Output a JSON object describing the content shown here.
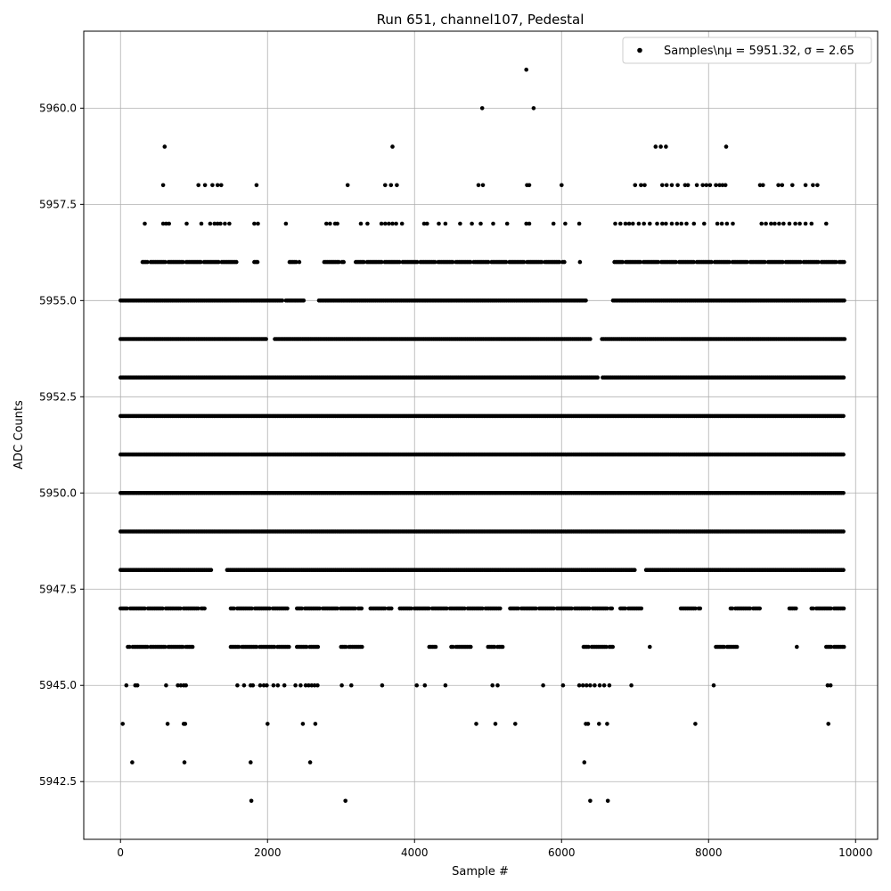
{
  "chart_data": {
    "type": "scatter",
    "title": "Run 651, channel107, Pedestal",
    "xlabel": "Sample #",
    "ylabel": "ADC Counts",
    "xlim": [
      -500,
      10300
    ],
    "ylim": [
      5941.0,
      5962.0
    ],
    "x_ticks": [
      0,
      2000,
      4000,
      6000,
      8000,
      10000
    ],
    "x_tick_labels": [
      "0",
      "2000",
      "4000",
      "6000",
      "8000",
      "10000"
    ],
    "y_ticks": [
      5942.5,
      5945.0,
      5947.5,
      5950.0,
      5952.5,
      5955.0,
      5957.5,
      5960.0
    ],
    "y_tick_labels": [
      "5942.5",
      "5945.0",
      "5947.5",
      "5950.0",
      "5952.5",
      "5955.0",
      "5957.5",
      "5960.0"
    ],
    "grid": true,
    "legend_position": "top-right",
    "marker_color": "#000000",
    "series": [
      {
        "name": "Samples\\nμ = 5951.32, σ = 2.65",
        "n_samples": 9850,
        "bands": [
          {
            "y": 5961,
            "x": [
              5520
            ]
          },
          {
            "y": 5960,
            "x": [
              4920,
              5620
            ]
          },
          {
            "y": 5959,
            "x": [
              600,
              3700,
              7280,
              7350,
              7420,
              8240
            ]
          },
          {
            "y": 5958,
            "x": [
              580,
              1060,
              1150,
              1250,
              1320,
              1370,
              1850,
              3090,
              3600,
              3680,
              3760,
              4870,
              4930,
              5530,
              5560,
              6000,
              7000,
              7080,
              7130,
              7370,
              7430,
              7500,
              7580,
              7680,
              7720,
              7840,
              7920,
              7970,
              8020,
              8100,
              8150,
              8190,
              8230,
              8700,
              8740,
              8950,
              9000,
              9140,
              9320,
              9420,
              9480
            ]
          },
          {
            "y": 5957,
            "x": [
              330,
              580,
              620,
              660,
              900,
              1100,
              1220,
              1280,
              1320,
              1360,
              1420,
              1480,
              1820,
              1870,
              2250,
              2800,
              2850,
              2920,
              2950,
              3270,
              3360,
              3550,
              3600,
              3650,
              3700,
              3750,
              3830,
              4130,
              4170,
              4330,
              4420,
              4620,
              4780,
              4900,
              5070,
              5260,
              5520,
              5560,
              5890,
              6050,
              6240,
              6730,
              6800,
              6870,
              6920,
              6970,
              7050,
              7120,
              7200,
              7300,
              7370,
              7420,
              7500,
              7570,
              7630,
              7700,
              7800,
              7940,
              8120,
              8180,
              8250,
              8330,
              8720,
              8780,
              8850,
              8900,
              8960,
              9020,
              9100,
              9180,
              9240,
              9320,
              9400,
              9600
            ]
          }
        ],
        "dense_levels": [
          {
            "y": 5956,
            "segments": [
              [
                300,
                1600
              ],
              [
                1820,
                1900
              ],
              [
                2300,
                2450
              ],
              [
                2750,
                3050
              ],
              [
                3200,
                6050
              ],
              [
                6250,
                6250
              ],
              [
                6720,
                9850
              ]
            ]
          },
          {
            "y": 5955,
            "segments": [
              [
                0,
                2200
              ],
              [
                2250,
                2500
              ],
              [
                2700,
                6350
              ],
              [
                6700,
                9850
              ]
            ]
          },
          {
            "y": 5954,
            "segments": [
              [
                0,
                2000
              ],
              [
                2100,
                6400
              ],
              [
                6550,
                9850
              ]
            ]
          },
          {
            "y": 5953,
            "segments": [
              [
                0,
                6500
              ],
              [
                6560,
                9850
              ]
            ]
          },
          {
            "y": 5952,
            "segments": [
              [
                0,
                9850
              ]
            ]
          },
          {
            "y": 5951,
            "segments": [
              [
                0,
                9850
              ]
            ]
          },
          {
            "y": 5950,
            "segments": [
              [
                0,
                9850
              ]
            ]
          },
          {
            "y": 5949,
            "segments": [
              [
                0,
                9850
              ]
            ]
          },
          {
            "y": 5948,
            "segments": [
              [
                0,
                1250
              ],
              [
                1450,
                7000
              ],
              [
                7150,
                9850
              ]
            ]
          },
          {
            "y": 5947,
            "segments": [
              [
                0,
                1150
              ],
              [
                1500,
                2300
              ],
              [
                2400,
                3300
              ],
              [
                3400,
                3700
              ],
              [
                3800,
                5200
              ],
              [
                5300,
                6700
              ],
              [
                6800,
                7100
              ],
              [
                7600,
                7900
              ],
              [
                8300,
                8700
              ],
              [
                9100,
                9200
              ],
              [
                9400,
                9850
              ]
            ]
          },
          {
            "y": 5946,
            "segments": [
              [
                100,
                1000
              ],
              [
                1500,
                2300
              ],
              [
                2400,
                2700
              ],
              [
                3000,
                3300
              ],
              [
                4200,
                4300
              ],
              [
                4500,
                4800
              ],
              [
                5000,
                5200
              ],
              [
                6300,
                6700
              ],
              [
                7200,
                7200
              ],
              [
                8100,
                8400
              ],
              [
                9200,
                9200
              ],
              [
                9600,
                9850
              ]
            ]
          }
        ],
        "sparse_levels": [
          {
            "y": 5945,
            "x": [
              80,
              200,
              230,
              620,
              780,
              820,
              860,
              890,
              1590,
              1680,
              1770,
              1800,
              1900,
              1950,
              1990,
              2080,
              2140,
              2230,
              2380,
              2450,
              2520,
              2560,
              2600,
              2640,
              2680,
              3010,
              3140,
              3560,
              4030,
              4140,
              4420,
              5060,
              5130,
              5750,
              6020,
              6240,
              6290,
              6340,
              6390,
              6450,
              6520,
              6580,
              6650,
              6950,
              8070,
              9620,
              9660
            ]
          },
          {
            "y": 5944,
            "x": [
              30,
              640,
              860,
              880,
              2000,
              2480,
              2650,
              4840,
              5100,
              5370,
              6330,
              6360,
              6510,
              6620,
              7820,
              9630
            ]
          },
          {
            "y": 5943,
            "x": [
              160,
              870,
              1770,
              2580,
              6310
            ]
          },
          {
            "y": 5942,
            "x": [
              1780,
              3060,
              6390,
              6630
            ]
          }
        ]
      }
    ]
  }
}
